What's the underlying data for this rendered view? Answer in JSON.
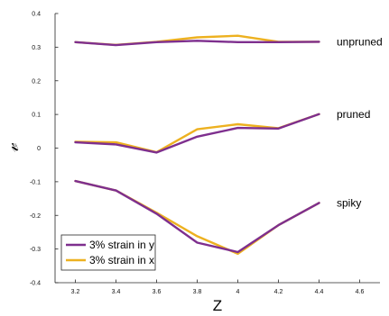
{
  "chart_data": {
    "type": "line",
    "xlabel": "Z",
    "ylabel": "𝓋",
    "xlim": [
      3.1,
      4.7
    ],
    "ylim": [
      -0.4,
      0.4
    ],
    "xticks": [
      "3.2",
      "3.4",
      "3.6",
      "3.8",
      "4",
      "4.2",
      "4.4",
      "4.6"
    ],
    "xtick_values": [
      3.2,
      3.4,
      3.6,
      3.8,
      4.0,
      4.2,
      4.4,
      4.6
    ],
    "yticks": [
      "0.4",
      "0.3",
      "0.2",
      "0.1",
      "0",
      "-0.1",
      "-0.2",
      "-0.3",
      "-0.4"
    ],
    "ytick_values": [
      0.4,
      0.3,
      0.2,
      0.1,
      0,
      -0.1,
      -0.2,
      -0.3,
      -0.4
    ],
    "grid": false,
    "legend_position": "bottom-left",
    "x": [
      3.2,
      3.4,
      3.6,
      3.8,
      4.0,
      4.2,
      4.4
    ],
    "series": [
      {
        "name": "3% strain in x",
        "color": "#EDB120",
        "group": "unpruned",
        "values": [
          0.315,
          0.307,
          0.316,
          0.329,
          0.334,
          0.316,
          0.316
        ]
      },
      {
        "name": "3% strain in y",
        "color": "#7E2F8E",
        "group": "unpruned",
        "values": [
          0.315,
          0.306,
          0.315,
          0.319,
          0.315,
          0.315,
          0.316
        ]
      },
      {
        "name": "3% strain in x",
        "color": "#EDB120",
        "group": "pruned",
        "values": [
          0.019,
          0.017,
          -0.012,
          0.056,
          0.071,
          0.059,
          0.101
        ]
      },
      {
        "name": "3% strain in y",
        "color": "#7E2F8E",
        "group": "pruned",
        "values": [
          0.017,
          0.011,
          -0.013,
          0.034,
          0.06,
          0.058,
          0.101
        ]
      },
      {
        "name": "3% strain in x",
        "color": "#EDB120",
        "group": "spiky",
        "values": [
          -0.098,
          -0.126,
          -0.192,
          -0.262,
          -0.314,
          -0.229,
          -0.163
        ]
      },
      {
        "name": "3% strain in y",
        "color": "#7E2F8E",
        "group": "spiky",
        "values": [
          -0.098,
          -0.126,
          -0.195,
          -0.281,
          -0.309,
          -0.229,
          -0.163
        ]
      }
    ],
    "annotations": [
      {
        "text": "unpruned",
        "x": 4.5,
        "y": 0.316
      },
      {
        "text": "pruned",
        "x": 4.5,
        "y": 0.101
      },
      {
        "text": "spiky",
        "x": 4.5,
        "y": -0.163
      }
    ],
    "legend": [
      {
        "label": "3% strain in y",
        "color": "#7E2F8E"
      },
      {
        "label": "3% strain in x",
        "color": "#EDB120"
      }
    ]
  }
}
